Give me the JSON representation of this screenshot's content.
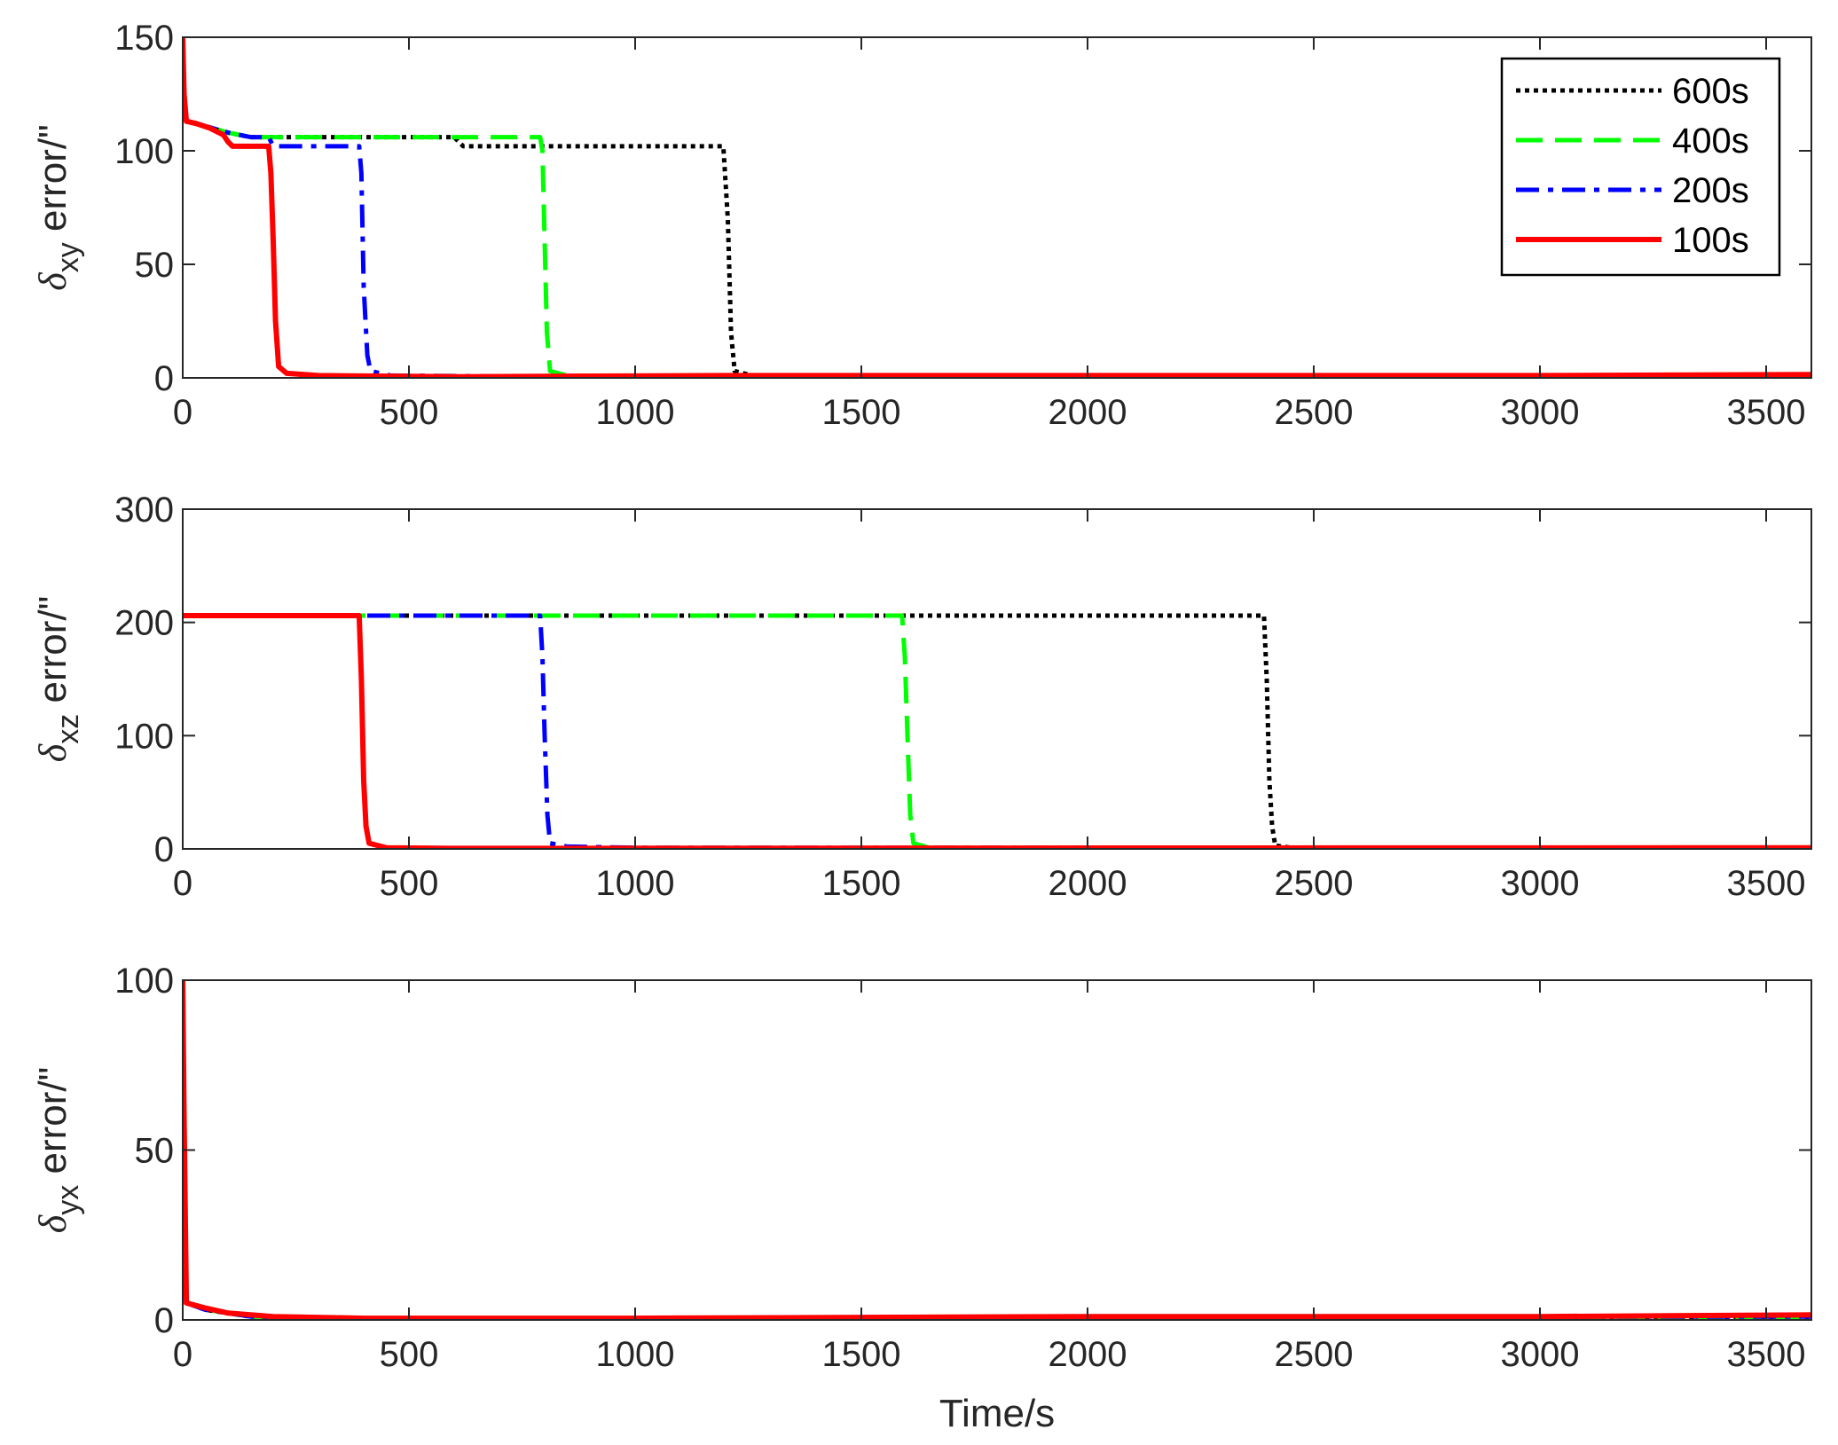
{
  "chart_data": [
    {
      "type": "line",
      "ylabel": {
        "symbol": "δ",
        "sub": "xy",
        "suffix": " error/\""
      },
      "xlabel": "",
      "xlim": [
        0,
        3600
      ],
      "ylim": [
        0,
        150
      ],
      "xticks": [
        0,
        500,
        1000,
        1500,
        2000,
        2500,
        3000,
        3500
      ],
      "yticks": [
        0,
        50,
        100,
        150
      ],
      "legend": {
        "placement": "top-right",
        "entries": [
          "600s",
          "400s",
          "200s",
          "100s"
        ]
      },
      "series": [
        {
          "name": "600s",
          "color": "#000000",
          "style": "dotted",
          "points": [
            [
              0,
              150
            ],
            [
              3,
              125
            ],
            [
              8,
              113
            ],
            [
              30,
              112
            ],
            [
              100,
              108
            ],
            [
              150,
              106
            ],
            [
              600,
              106
            ],
            [
              620,
              102
            ],
            [
              1195,
              102
            ],
            [
              1205,
              70
            ],
            [
              1212,
              20
            ],
            [
              1220,
              3
            ],
            [
              1260,
              1
            ],
            [
              1500,
              0.5
            ],
            [
              3600,
              0.5
            ]
          ]
        },
        {
          "name": "400s",
          "color": "#00ff00",
          "style": "dashed",
          "points": [
            [
              0,
              150
            ],
            [
              3,
              125
            ],
            [
              8,
              113
            ],
            [
              30,
              112
            ],
            [
              100,
              108
            ],
            [
              150,
              106
            ],
            [
              790,
              106
            ],
            [
              795,
              100
            ],
            [
              800,
              60
            ],
            [
              805,
              20
            ],
            [
              812,
              3
            ],
            [
              850,
              1
            ],
            [
              1200,
              0.5
            ],
            [
              3600,
              0.5
            ]
          ]
        },
        {
          "name": "200s",
          "color": "#0000ff",
          "style": "dashdot",
          "points": [
            [
              0,
              150
            ],
            [
              3,
              125
            ],
            [
              8,
              113
            ],
            [
              30,
              112
            ],
            [
              100,
              108
            ],
            [
              150,
              106
            ],
            [
              190,
              106
            ],
            [
              200,
              102
            ],
            [
              390,
              102
            ],
            [
              395,
              90
            ],
            [
              400,
              40
            ],
            [
              408,
              10
            ],
            [
              415,
              3
            ],
            [
              460,
              1
            ],
            [
              800,
              0.5
            ],
            [
              3600,
              0.5
            ]
          ]
        },
        {
          "name": "100s",
          "color": "#ff0000",
          "style": "solid",
          "points": [
            [
              0,
              150
            ],
            [
              3,
              125
            ],
            [
              8,
              113
            ],
            [
              30,
              112
            ],
            [
              60,
              110
            ],
            [
              90,
              107
            ],
            [
              100,
              104
            ],
            [
              110,
              102
            ],
            [
              190,
              102
            ],
            [
              195,
              90
            ],
            [
              200,
              60
            ],
            [
              205,
              25
            ],
            [
              212,
              5
            ],
            [
              230,
              2
            ],
            [
              300,
              1
            ],
            [
              600,
              0.5
            ],
            [
              1200,
              1
            ],
            [
              3000,
              1
            ],
            [
              3600,
              1.5
            ]
          ]
        }
      ]
    },
    {
      "type": "line",
      "ylabel": {
        "symbol": "δ",
        "sub": "xz",
        "suffix": " error/\""
      },
      "xlabel": "",
      "xlim": [
        0,
        3600
      ],
      "ylim": [
        0,
        300
      ],
      "xticks": [
        0,
        500,
        1000,
        1500,
        2000,
        2500,
        3000,
        3500
      ],
      "yticks": [
        0,
        100,
        200,
        300
      ],
      "series": [
        {
          "name": "600s",
          "color": "#000000",
          "style": "dotted",
          "points": [
            [
              0,
              206
            ],
            [
              2390,
              206
            ],
            [
              2396,
              150
            ],
            [
              2402,
              60
            ],
            [
              2408,
              20
            ],
            [
              2415,
              3
            ],
            [
              2450,
              1
            ],
            [
              3600,
              1
            ]
          ]
        },
        {
          "name": "400s",
          "color": "#00ff00",
          "style": "dashed",
          "points": [
            [
              0,
              206
            ],
            [
              1590,
              206
            ],
            [
              1596,
              170
            ],
            [
              1602,
              100
            ],
            [
              1608,
              30
            ],
            [
              1615,
              5
            ],
            [
              1650,
              1
            ],
            [
              3600,
              1
            ]
          ]
        },
        {
          "name": "200s",
          "color": "#0000ff",
          "style": "dashdot",
          "points": [
            [
              0,
              206
            ],
            [
              790,
              206
            ],
            [
              795,
              170
            ],
            [
              800,
              100
            ],
            [
              806,
              30
            ],
            [
              812,
              5
            ],
            [
              850,
              2
            ],
            [
              1000,
              1
            ],
            [
              3600,
              1
            ]
          ]
        },
        {
          "name": "100s",
          "color": "#ff0000",
          "style": "solid",
          "points": [
            [
              0,
              206
            ],
            [
              390,
              206
            ],
            [
              395,
              150
            ],
            [
              400,
              60
            ],
            [
              405,
              20
            ],
            [
              412,
              5
            ],
            [
              450,
              1
            ],
            [
              600,
              0.5
            ],
            [
              3600,
              1
            ]
          ]
        }
      ]
    },
    {
      "type": "line",
      "ylabel": {
        "symbol": "δ",
        "sub": "yx",
        "suffix": " error/\""
      },
      "xlabel": "Time/s",
      "xlim": [
        0,
        3600
      ],
      "ylim": [
        0,
        100
      ],
      "xticks": [
        0,
        500,
        1000,
        1500,
        2000,
        2500,
        3000,
        3500
      ],
      "yticks": [
        0,
        50,
        100
      ],
      "series": [
        {
          "name": "600s",
          "color": "#000000",
          "style": "dotted",
          "points": [
            [
              0,
              100
            ],
            [
              3,
              60
            ],
            [
              8,
              5
            ],
            [
              50,
              3
            ],
            [
              150,
              1
            ],
            [
              400,
              0.5
            ],
            [
              3600,
              0.5
            ]
          ]
        },
        {
          "name": "400s",
          "color": "#00ff00",
          "style": "dashed",
          "points": [
            [
              0,
              100
            ],
            [
              3,
              60
            ],
            [
              8,
              5
            ],
            [
              50,
              3
            ],
            [
              150,
              1
            ],
            [
              400,
              0.5
            ],
            [
              3600,
              0.5
            ]
          ]
        },
        {
          "name": "200s",
          "color": "#0000ff",
          "style": "dashdot",
          "points": [
            [
              0,
              100
            ],
            [
              3,
              60
            ],
            [
              8,
              5
            ],
            [
              50,
              3
            ],
            [
              150,
              1
            ],
            [
              400,
              0.5
            ],
            [
              1000,
              0.5
            ],
            [
              2000,
              1
            ],
            [
              3600,
              1
            ]
          ]
        },
        {
          "name": "100s",
          "color": "#ff0000",
          "style": "solid",
          "points": [
            [
              0,
              100
            ],
            [
              3,
              60
            ],
            [
              8,
              5
            ],
            [
              50,
              3.5
            ],
            [
              100,
              2
            ],
            [
              200,
              1
            ],
            [
              400,
              0.5
            ],
            [
              1000,
              0.5
            ],
            [
              2000,
              1
            ],
            [
              3000,
              1
            ],
            [
              3600,
              1.5
            ]
          ]
        }
      ]
    }
  ]
}
